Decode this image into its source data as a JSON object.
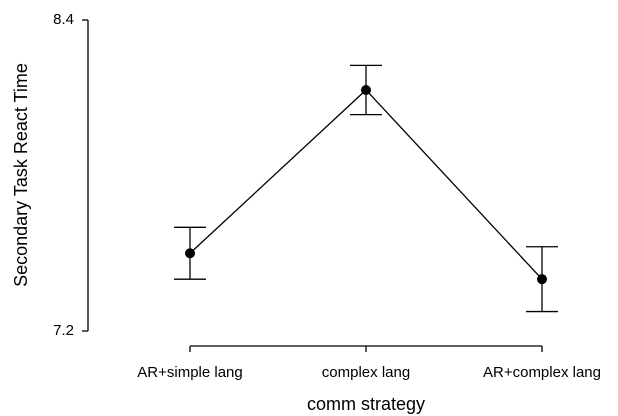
{
  "chart_data": {
    "type": "line",
    "x_label": "comm strategy",
    "y_label": "Secondary Task React Time",
    "categories": [
      "AR+simple lang",
      "complex lang",
      "AR+complex lang"
    ],
    "series": [
      {
        "color": "#000000",
        "values": [
          7.5,
          8.13,
          7.4
        ],
        "errors": [
          0.1,
          0.095,
          0.125
        ]
      }
    ],
    "ylim": [
      7.2,
      8.4
    ],
    "yticks": [
      7.2,
      8.4
    ],
    "grid": false
  }
}
